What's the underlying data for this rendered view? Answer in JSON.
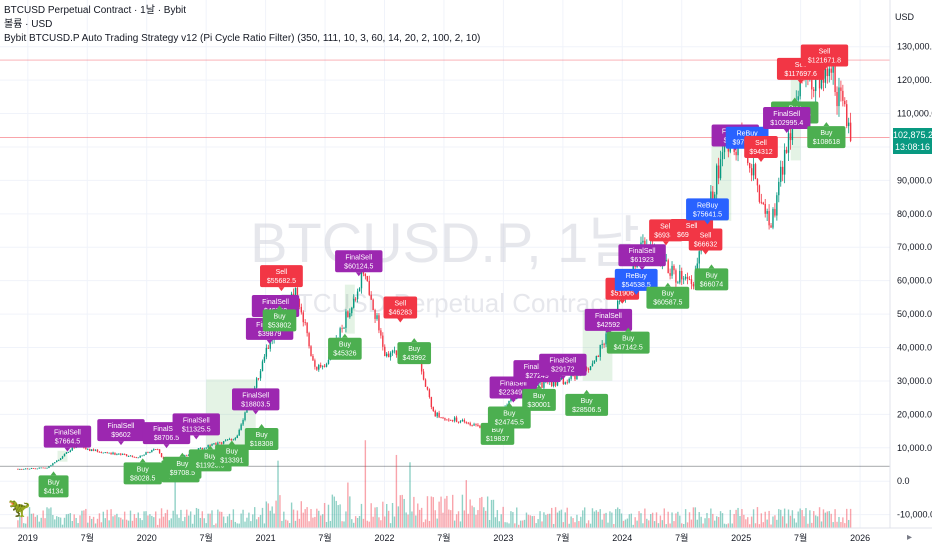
{
  "legend": {
    "title": "BTCUSD Perpetual Contract · 1날 · Bybit",
    "volume": "볼륨 · USD",
    "strategy": "Bybit BTCUSD.P Auto Trading Strategy v12 (Pi Cycle Ratio Filter) (350, 111, 10, 3, 60, 14, 20, 2, 100, 2, 10)"
  },
  "watermark": {
    "symbol": "BTCUSD.P, 1날",
    "name": "BTCUSD Perpetual Contract"
  },
  "axis": {
    "currency": "USD",
    "y_ticks": [
      "130,000.0",
      "120,000.0",
      "110,000.0",
      "100,000.0",
      "90,000.0",
      "80,000.0",
      "70,000.0",
      "60,000.0",
      "50,000.0",
      "40,000.0",
      "30,000.0",
      "20,000.0",
      "10,000.0",
      "0.0",
      "-10,000.0"
    ],
    "x_ticks": [
      "2019",
      "7월",
      "2020",
      "7월",
      "2021",
      "7월",
      "2022",
      "7월",
      "2023",
      "7월",
      "2024",
      "7월",
      "2025",
      "7월",
      "2026"
    ]
  },
  "last_price": {
    "value": "102,875.2",
    "countdown": "13:08:16",
    "color": "#089981"
  },
  "colors": {
    "up": "#089981",
    "down": "#f23645",
    "buy": "#4caf50",
    "sell": "#f23645",
    "final_sell": "#9c27b0",
    "rebuy": "#2962ff",
    "grid": "#f0f3fa"
  },
  "chart_data": {
    "type": "candlestick",
    "x_range": [
      "2018-11",
      "2026-01"
    ],
    "ylim": [
      -10000,
      135000
    ],
    "price_path": [
      [
        "2018-12",
        3700
      ],
      [
        "2019-03",
        4000
      ],
      [
        "2019-06",
        11000
      ],
      [
        "2019-07",
        9500
      ],
      [
        "2019-12",
        7200
      ],
      [
        "2020-02",
        9800
      ],
      [
        "2020-03",
        5000
      ],
      [
        "2020-06",
        9300
      ],
      [
        "2020-10",
        13000
      ],
      [
        "2020-12",
        29000
      ],
      [
        "2021-02",
        47000
      ],
      [
        "2021-04",
        58000
      ],
      [
        "2021-06",
        34000
      ],
      [
        "2021-07",
        33000
      ],
      [
        "2021-09",
        48000
      ],
      [
        "2021-11",
        64000
      ],
      [
        "2022-01",
        38000
      ],
      [
        "2022-04",
        40000
      ],
      [
        "2022-06",
        20000
      ],
      [
        "2022-11",
        16000
      ],
      [
        "2023-03",
        28000
      ],
      [
        "2023-07",
        30000
      ],
      [
        "2023-10",
        34000
      ],
      [
        "2024-03",
        70000
      ],
      [
        "2024-08",
        58000
      ],
      [
        "2024-11",
        98000
      ],
      [
        "2025-01",
        102000
      ],
      [
        "2025-04",
        77000
      ],
      [
        "2025-07",
        118000
      ],
      [
        "2025-10",
        124000
      ],
      [
        "2025-12",
        102875
      ]
    ],
    "signals": [
      {
        "type": "Buy",
        "label": "Buy",
        "price": "$4134",
        "date": "2019-04",
        "value": 4134
      },
      {
        "type": "FinalSell",
        "label": "FinalSell",
        "price": "$7664.5",
        "date": "2019-05",
        "value": 7664.5
      },
      {
        "type": "FinalSell",
        "label": "FinalSell",
        "price": "$9602",
        "date": "2019-10",
        "value": 9602
      },
      {
        "type": "Buy",
        "label": "Buy",
        "price": "$8028.5",
        "date": "2020-01",
        "value": 8028.5
      },
      {
        "type": "FinalSell",
        "label": "FinalSell",
        "price": "$8706.5",
        "date": "2020-03",
        "value": 8706.5
      },
      {
        "type": "Buy",
        "label": "Buy",
        "price": "$8628.5",
        "date": "2020-04",
        "value": 8628.5
      },
      {
        "type": "Buy",
        "label": "Buy",
        "price": "$9708.5",
        "date": "2020-05",
        "value": 9708.5
      },
      {
        "type": "FinalSell",
        "label": "FinalSell",
        "price": "$11325.5",
        "date": "2020-06",
        "value": 11325.5
      },
      {
        "type": "Buy",
        "label": "Buy",
        "price": "$11923.5",
        "date": "2020-07",
        "value": 11923.5
      },
      {
        "type": "Buy",
        "label": "Buy",
        "price": "$13391",
        "date": "2020-10",
        "value": 13391
      },
      {
        "type": "FinalSell",
        "label": "FinalSell",
        "price": "$18803.5",
        "date": "2020-12",
        "value": 18803.5
      },
      {
        "type": "FinalSell",
        "label": "FinalSell",
        "price": "$39879",
        "date": "2021-01",
        "value": 39879
      },
      {
        "type": "Buy",
        "label": "Buy",
        "price": "$18308",
        "date": "2021-01",
        "value": 18308
      },
      {
        "type": "FinalSell",
        "label": "FinalSell",
        "price": "$46752",
        "date": "2021-02",
        "value": 46752
      },
      {
        "type": "Buy",
        "label": "Buy",
        "price": "$53802",
        "date": "2021-02",
        "value": 53802
      },
      {
        "type": "Sell",
        "label": "Sell",
        "price": "$55682.5",
        "date": "2021-03",
        "value": 55682.5
      },
      {
        "type": "Buy",
        "label": "Buy",
        "price": "$45326",
        "date": "2021-09",
        "value": 45326
      },
      {
        "type": "FinalSell",
        "label": "FinalSell",
        "price": "$60124.5",
        "date": "2021-10",
        "value": 60124.5
      },
      {
        "type": "Sell",
        "label": "Sell",
        "price": "$46283",
        "date": "2022-03",
        "value": 46283
      },
      {
        "type": "Buy",
        "label": "Buy",
        "price": "$43992",
        "date": "2022-04",
        "value": 43992
      },
      {
        "type": "Buy",
        "label": "Buy",
        "price": "$19837",
        "date": "2022-12",
        "value": 19837
      },
      {
        "type": "Buy",
        "label": "Buy",
        "price": "$24745.5",
        "date": "2023-02",
        "value": 24745.5
      },
      {
        "type": "FinalSell",
        "label": "FinalSell",
        "price": "$22349.5",
        "date": "2023-02",
        "value": 22349.5
      },
      {
        "type": "FinalSell",
        "label": "FinalSell",
        "price": "$27249",
        "date": "2023-04",
        "value": 27249
      },
      {
        "type": "Buy",
        "label": "Buy",
        "price": "$30001",
        "date": "2023-05",
        "value": 30001
      },
      {
        "type": "FinalSell",
        "label": "FinalSell",
        "price": "$29172",
        "date": "2023-07",
        "value": 29172
      },
      {
        "type": "Buy",
        "label": "Buy",
        "price": "$28506.5",
        "date": "2023-09",
        "value": 28506.5
      },
      {
        "type": "FinalSell",
        "label": "FinalSell",
        "price": "$42592",
        "date": "2023-12",
        "value": 42592
      },
      {
        "type": "Sell",
        "label": "Sell",
        "price": "$51906",
        "date": "2024-01",
        "value": 51906
      },
      {
        "type": "ReBuy",
        "label": "ReBuy",
        "price": "$54538.5",
        "date": "2024-02",
        "value": 54538.5
      },
      {
        "type": "Buy",
        "label": "Buy",
        "price": "$47142.5",
        "date": "2024-02",
        "value": 47142.5
      },
      {
        "type": "FinalSell",
        "label": "FinalSell",
        "price": "$61923",
        "date": "2024-03",
        "value": 61923
      },
      {
        "type": "Sell",
        "label": "Sell",
        "price": "$69348",
        "date": "2024-05",
        "value": 69348
      },
      {
        "type": "Buy",
        "label": "Buy",
        "price": "$60587.5",
        "date": "2024-06",
        "value": 60587.5
      },
      {
        "type": "Sell",
        "label": "Sell",
        "price": "$69476.5",
        "date": "2024-08",
        "value": 69476.5
      },
      {
        "type": "Sell",
        "label": "Sell",
        "price": "$66632",
        "date": "2024-09",
        "value": 66632
      },
      {
        "type": "ReBuy",
        "label": "ReBuy",
        "price": "$75641.5",
        "date": "2024-10",
        "value": 75641.5
      },
      {
        "type": "Buy",
        "label": "Buy",
        "price": "$66074",
        "date": "2024-10",
        "value": 66074
      },
      {
        "type": "FinalSell",
        "label": "FinalSell",
        "price": "$97734",
        "date": "2024-12",
        "value": 97734
      },
      {
        "type": "ReBuy",
        "label": "ReBuy",
        "price": "$97086.1",
        "date": "2025-02",
        "value": 97086.1
      },
      {
        "type": "Sell",
        "label": "Sell",
        "price": "$94312",
        "date": "2025-03",
        "value": 94312
      },
      {
        "type": "Buy",
        "label": "Buy",
        "price": "$115990.7",
        "date": "2025-06",
        "value": 115990.7
      },
      {
        "type": "FinalSell",
        "label": "FinalSell",
        "price": "$102995.4",
        "date": "2025-06",
        "value": 102995.4
      },
      {
        "type": "Sell",
        "label": "Sell",
        "price": "$117697.6",
        "date": "2025-07",
        "value": 117697.6
      },
      {
        "type": "Sell",
        "label": "Sell",
        "price": "$121671.8",
        "date": "2025-09",
        "value": 121671.8
      },
      {
        "type": "Buy",
        "label": "Buy",
        "price": "$108618",
        "date": "2025-10",
        "value": 108618
      }
    ]
  }
}
